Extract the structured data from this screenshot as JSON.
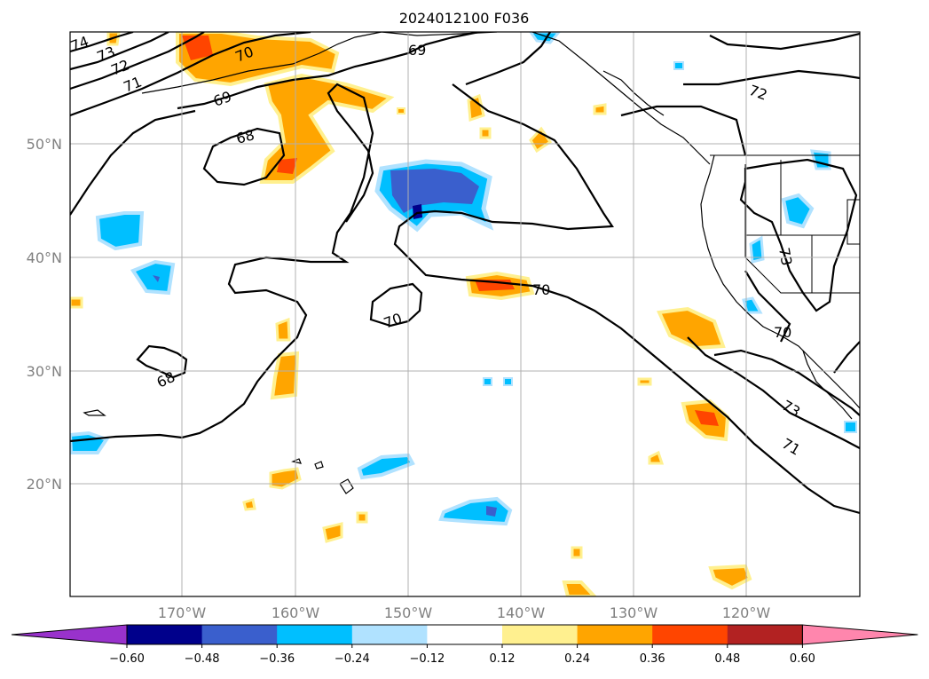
{
  "title": "2024012100 F036",
  "map": {
    "lat_labels": [
      "50°N",
      "40°N",
      "30°N",
      "20°N"
    ],
    "lon_labels": [
      "170°W",
      "160°W",
      "150°W",
      "140°W",
      "130°W",
      "120°W"
    ]
  },
  "colorbar": {
    "colors": [
      "#9932cc",
      "#00008b",
      "#3a5fcd",
      "#00bfff",
      "#b0e2ff",
      "#ffffff",
      "#fff08f",
      "#ffa500",
      "#ff4500",
      "#b22222",
      "#ff86ad"
    ],
    "tick_labels": [
      "−0.60",
      "−0.48",
      "−0.36",
      "−0.24",
      "−0.12",
      "0.12",
      "0.24",
      "0.36",
      "0.48",
      "0.60"
    ]
  },
  "contour_labels": [
    "74",
    "73",
    "72",
    "71",
    "70",
    "69",
    "69",
    "68",
    "68",
    "70",
    "70",
    "72",
    "73",
    "71",
    "73",
    "70"
  ]
}
